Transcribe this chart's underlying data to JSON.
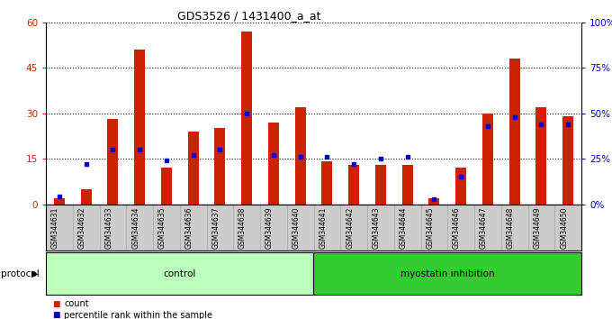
{
  "title": "GDS3526 / 1431400_a_at",
  "samples": [
    "GSM344631",
    "GSM344632",
    "GSM344633",
    "GSM344634",
    "GSM344635",
    "GSM344636",
    "GSM344637",
    "GSM344638",
    "GSM344639",
    "GSM344640",
    "GSM344641",
    "GSM344642",
    "GSM344643",
    "GSM344644",
    "GSM344645",
    "GSM344646",
    "GSM344647",
    "GSM344648",
    "GSM344649",
    "GSM344650"
  ],
  "counts": [
    2,
    5,
    28,
    51,
    12,
    24,
    25,
    57,
    27,
    32,
    14,
    13,
    13,
    13,
    2,
    12,
    30,
    48,
    32,
    29
  ],
  "percentiles": [
    4,
    22,
    30,
    30,
    24,
    27,
    30,
    50,
    27,
    26,
    26,
    22,
    25,
    26,
    3,
    15,
    43,
    48,
    44,
    44
  ],
  "control_count": 10,
  "bar_color": "#cc2200",
  "marker_color": "#0000cc",
  "control_label": "control",
  "inhibition_label": "myostatin inhibition",
  "control_bg": "#bbffbb",
  "inhibition_bg": "#33cc33",
  "protocol_label": "protocol",
  "legend_count": "count",
  "legend_pct": "percentile rank within the sample",
  "ylim_left": [
    0,
    60
  ],
  "ylim_right": [
    0,
    100
  ],
  "yticks_left": [
    0,
    15,
    30,
    45,
    60
  ],
  "ytick_labels_left": [
    "0",
    "15",
    "30",
    "45",
    "60"
  ],
  "yticks_right": [
    0,
    25,
    50,
    75,
    100
  ],
  "ytick_labels_right": [
    "0%",
    "25%",
    "50%",
    "75%",
    "100%"
  ],
  "bg_color": "#ffffff",
  "plot_bg": "#ffffff",
  "tick_label_bg": "#cccccc",
  "title_fontsize": 9,
  "axis_fontsize": 7.5,
  "label_fontsize": 5.5,
  "legend_fontsize": 7
}
